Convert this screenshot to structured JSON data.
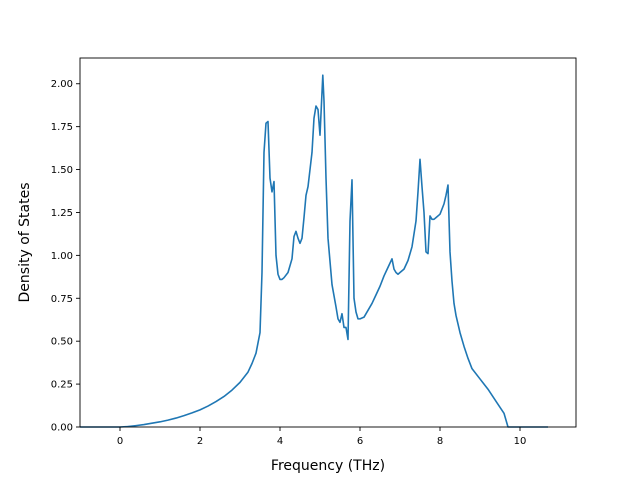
{
  "chart_data": {
    "type": "line",
    "title": "",
    "xlabel": "Frequency (THz)",
    "ylabel": "Density of States",
    "xlim": [
      -1.0,
      11.4
    ],
    "ylim": [
      0,
      2.15
    ],
    "xticks": [
      0,
      2,
      4,
      6,
      8,
      10
    ],
    "yticks": [
      0.0,
      0.25,
      0.5,
      0.75,
      1.0,
      1.25,
      1.5,
      1.75,
      2.0
    ],
    "xtick_labels": [
      "0",
      "2",
      "4",
      "6",
      "8",
      "10"
    ],
    "ytick_labels": [
      "0.00",
      "0.25",
      "0.50",
      "0.75",
      "1.00",
      "1.25",
      "1.50",
      "1.75",
      "2.00"
    ],
    "grid": false,
    "line_color": "#1f77b4",
    "series": [
      {
        "x": [
          -1.0,
          -0.5,
          0.0,
          0.2,
          0.4,
          0.6,
          0.8,
          1.0,
          1.2,
          1.4,
          1.6,
          1.8,
          2.0,
          2.2,
          2.4,
          2.6,
          2.8,
          3.0,
          3.2,
          3.3,
          3.4,
          3.5,
          3.55,
          3.6,
          3.65,
          3.7,
          3.75,
          3.8,
          3.85,
          3.9,
          3.95,
          4.0,
          4.05,
          4.1,
          4.2,
          4.3,
          4.35,
          4.4,
          4.45,
          4.5,
          4.55,
          4.6,
          4.65,
          4.7,
          4.75,
          4.8,
          4.85,
          4.9,
          4.95,
          5.0,
          5.03,
          5.07,
          5.1,
          5.15,
          5.2,
          5.3,
          5.4,
          5.45,
          5.5,
          5.55,
          5.6,
          5.65,
          5.7,
          5.75,
          5.8,
          5.85,
          5.9,
          5.95,
          6.0,
          6.1,
          6.2,
          6.3,
          6.4,
          6.5,
          6.6,
          6.7,
          6.8,
          6.85,
          6.9,
          6.95,
          7.0,
          7.1,
          7.2,
          7.3,
          7.4,
          7.45,
          7.5,
          7.55,
          7.6,
          7.65,
          7.7,
          7.75,
          7.8,
          7.85,
          7.9,
          8.0,
          8.1,
          8.15,
          8.2,
          8.25,
          8.3,
          8.35,
          8.4,
          8.5,
          8.6,
          8.7,
          8.8,
          9.0,
          9.2,
          9.4,
          9.6,
          9.7,
          9.8,
          10.0,
          10.3,
          10.7
        ],
        "y": [
          0.0,
          0.0,
          0.0,
          0.003,
          0.008,
          0.014,
          0.022,
          0.03,
          0.04,
          0.052,
          0.066,
          0.082,
          0.1,
          0.122,
          0.148,
          0.178,
          0.215,
          0.26,
          0.32,
          0.37,
          0.43,
          0.55,
          0.9,
          1.6,
          1.77,
          1.78,
          1.45,
          1.37,
          1.43,
          1.0,
          0.89,
          0.86,
          0.86,
          0.87,
          0.9,
          0.98,
          1.11,
          1.14,
          1.1,
          1.07,
          1.1,
          1.22,
          1.35,
          1.4,
          1.5,
          1.6,
          1.8,
          1.87,
          1.85,
          1.7,
          1.85,
          2.05,
          1.9,
          1.45,
          1.1,
          0.83,
          0.7,
          0.63,
          0.61,
          0.66,
          0.58,
          0.58,
          0.51,
          1.2,
          1.44,
          0.75,
          0.67,
          0.63,
          0.63,
          0.64,
          0.68,
          0.72,
          0.77,
          0.82,
          0.88,
          0.93,
          0.98,
          0.92,
          0.9,
          0.89,
          0.9,
          0.92,
          0.97,
          1.05,
          1.2,
          1.37,
          1.56,
          1.4,
          1.25,
          1.02,
          1.01,
          1.23,
          1.21,
          1.21,
          1.22,
          1.24,
          1.3,
          1.35,
          1.41,
          1.02,
          0.85,
          0.72,
          0.65,
          0.55,
          0.47,
          0.4,
          0.34,
          0.28,
          0.22,
          0.15,
          0.08,
          0.0,
          0.0,
          0.0,
          0.0,
          0.0
        ]
      }
    ]
  }
}
